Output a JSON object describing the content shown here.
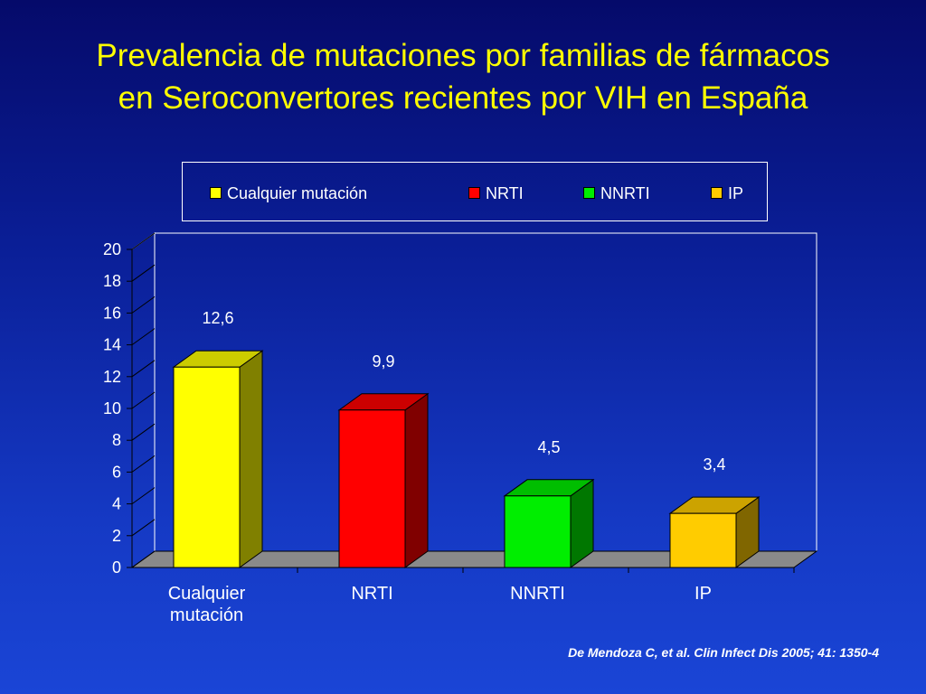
{
  "slide": {
    "title_line1": "Prevalencia de mutaciones por familias de fármacos",
    "title_line2": "en Seroconvertores recientes por VIH en España",
    "citation": "De Mendoza C, et  al. Clin Infect Dis 2005; 41: 1350-4"
  },
  "chart_data": {
    "type": "bar",
    "categories": [
      "Cualquier mutación",
      "NRTI",
      "NNRTI",
      "IP"
    ],
    "category_labels": [
      [
        "Cualquier",
        "mutación"
      ],
      [
        "NRTI"
      ],
      [
        "NNRTI"
      ],
      [
        "IP"
      ]
    ],
    "values": [
      12.6,
      9.9,
      4.5,
      3.4
    ],
    "data_labels": [
      "12,6",
      "9,9",
      "4,5",
      "3,4"
    ],
    "colors": [
      "#ffff00",
      "#ff0000",
      "#00ee00",
      "#ffcc00"
    ],
    "legend": [
      "Cualquier mutación",
      "NRTI",
      "NNRTI",
      "IP"
    ],
    "legend_position": "top",
    "yticks": [
      0,
      2,
      4,
      6,
      8,
      10,
      12,
      14,
      16,
      18,
      20
    ],
    "ylim": [
      0,
      20
    ],
    "style": "3d",
    "grid": false
  }
}
